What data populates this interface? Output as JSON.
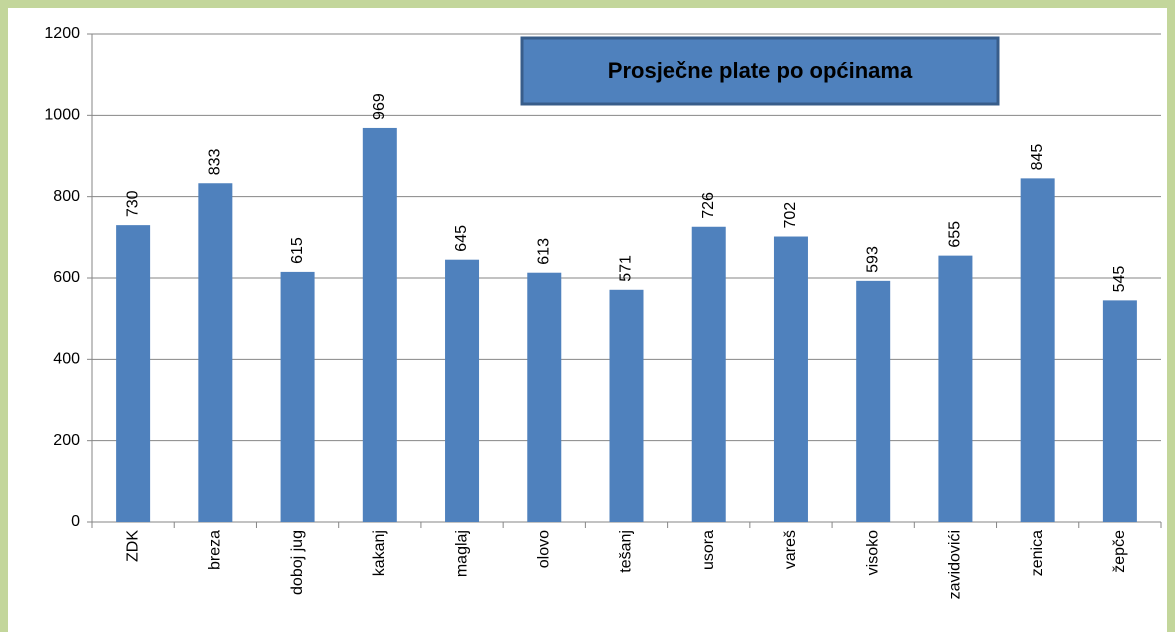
{
  "chart_data": {
    "type": "bar",
    "title": "Prosječne plate po općinama",
    "categories": [
      "ZDK",
      "breza",
      "doboj jug",
      "kakanj",
      "maglaj",
      "olovo",
      "tešanj",
      "usora",
      "vareš",
      "visoko",
      "zavidovići",
      "zenica",
      "žepče"
    ],
    "values": [
      730,
      833,
      615,
      969,
      645,
      613,
      571,
      726,
      702,
      593,
      655,
      845,
      545
    ],
    "color": "#4f81bd",
    "ylim": [
      0,
      1200
    ],
    "yticks": [
      0,
      200,
      400,
      600,
      800,
      1000,
      1200
    ],
    "grid": true
  }
}
